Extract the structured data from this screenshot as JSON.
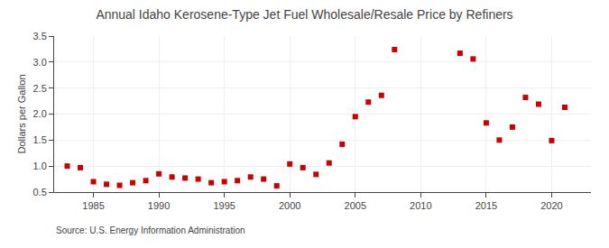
{
  "chart_data": {
    "type": "scatter",
    "title": "Annual Idaho Kerosene-Type Jet Fuel Wholesale/Resale Price by Refiners",
    "ylabel": "Dollars per Gallon",
    "source": "Source: U.S. Energy Information Administration",
    "x": [
      1983,
      1984,
      1985,
      1986,
      1987,
      1988,
      1989,
      1990,
      1991,
      1992,
      1993,
      1994,
      1995,
      1996,
      1997,
      1998,
      1999,
      2000,
      2001,
      2002,
      2003,
      2004,
      2005,
      2006,
      2007,
      2008,
      2013,
      2014,
      2015,
      2016,
      2017,
      2018,
      2019,
      2020,
      2021
    ],
    "values": [
      1.0,
      0.97,
      0.7,
      0.65,
      0.63,
      0.68,
      0.72,
      0.85,
      0.79,
      0.77,
      0.75,
      0.68,
      0.7,
      0.72,
      0.79,
      0.75,
      0.62,
      1.04,
      0.97,
      0.84,
      1.06,
      1.42,
      1.95,
      2.23,
      2.36,
      3.24,
      3.17,
      3.06,
      1.83,
      1.5,
      1.75,
      2.32,
      2.19,
      1.49,
      2.13
    ],
    "color": "#cc0000",
    "marker": "square",
    "xlim": [
      1982,
      2023
    ],
    "xticks": [
      1985,
      1990,
      1995,
      2000,
      2005,
      2010,
      2015,
      2020
    ],
    "ylim": [
      0.5,
      3.5
    ],
    "yticks": [
      0.5,
      {
        "value": 1.0,
        "label": "1.0"
      },
      1.5,
      {
        "value": 2.0,
        "label": "2.0"
      },
      2.5,
      {
        "value": 3.0,
        "label": "3.0"
      },
      3.5
    ],
    "grid": true
  }
}
